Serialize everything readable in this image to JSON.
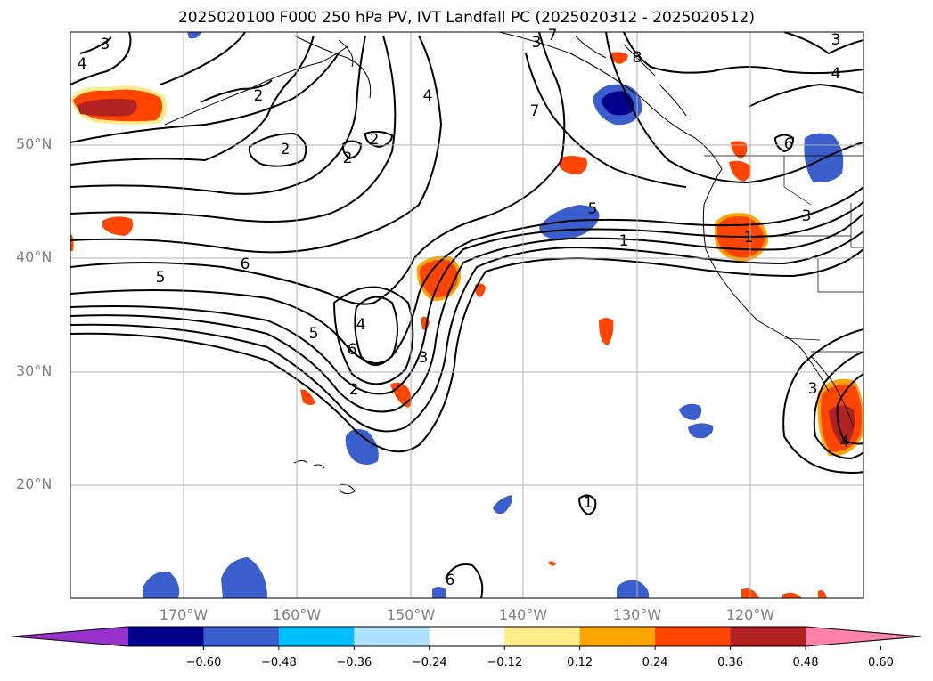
{
  "title": "2025020100 F000 250 hPa PV, IVT Landfall PC (2025020312 - 2025020512)",
  "map": {
    "projection": "cylindrical",
    "lon_range": [
      -180,
      -110
    ],
    "lat_range": [
      10,
      60
    ],
    "gridlines": true,
    "lat_labels": [
      "50°N",
      "40°N",
      "30°N",
      "20°N"
    ],
    "lon_labels": [
      "170°W",
      "160°W",
      "150°W",
      "140°W",
      "130°W",
      "120°W"
    ]
  },
  "contours": {
    "labels": [
      "3",
      "4",
      "2",
      "2",
      "2",
      "2",
      "4",
      "7",
      "8",
      "4",
      "3",
      "6",
      "5",
      "6",
      "5",
      "4",
      "6",
      "5",
      "1",
      "3",
      "2",
      "3",
      "1",
      "1",
      "6",
      "3",
      "4",
      "3",
      "7"
    ],
    "color": "#000000"
  },
  "colorbar": {
    "extend": "both",
    "colors": [
      "#9932cc",
      "#00008b",
      "#3a5fcd",
      "#00bfff",
      "#b0e2ff",
      "#ffffff",
      "#ffec8b",
      "#ffa500",
      "#ff4500",
      "#b22222",
      "#ff82ab"
    ],
    "ticks": [
      "−0.60",
      "−0.48",
      "−0.36",
      "−0.24",
      "−0.12",
      "0.12",
      "0.24",
      "0.36",
      "0.48",
      "0.60"
    ]
  }
}
